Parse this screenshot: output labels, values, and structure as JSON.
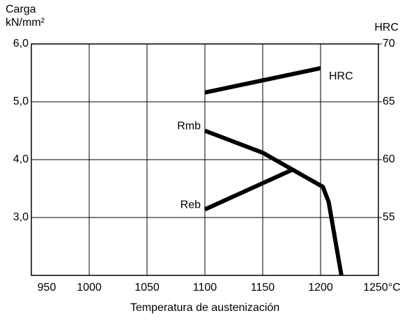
{
  "chart_data": {
    "type": "line",
    "ylabel": [
      "Carga",
      "kN/mm²"
    ],
    "y2label": "HRC",
    "xlabel": "Temperatura de austenización",
    "xlim": [
      950,
      1250
    ],
    "xticks": [
      950,
      1000,
      1050,
      1100,
      1150,
      1200,
      {
        "value": 1250,
        "label": "1250°C"
      }
    ],
    "ylim": [
      2,
      6
    ],
    "yticks": [
      {
        "value": 3,
        "label": "3,0"
      },
      {
        "value": 4,
        "label": "4,0"
      },
      {
        "value": 5,
        "label": "5,0"
      },
      {
        "value": 6,
        "label": "6,0"
      }
    ],
    "y2lim": [
      50,
      70
    ],
    "y2ticks": [
      55,
      60,
      65,
      70
    ],
    "grid": true,
    "series": [
      {
        "name": "HRC",
        "color": "#000000",
        "axis": "y2",
        "x": [
          1100,
          1200
        ],
        "values": [
          65.8,
          67.9
        ]
      },
      {
        "name": "Rmb",
        "color": "#000000",
        "x": [
          1100,
          1150,
          1202,
          1207,
          1218
        ],
        "values": [
          4.5,
          4.12,
          3.53,
          3.27,
          2.0
        ]
      },
      {
        "name": "Reb",
        "color": "#000000",
        "x": [
          1100,
          1175
        ],
        "values": [
          3.14,
          3.82
        ]
      }
    ]
  }
}
